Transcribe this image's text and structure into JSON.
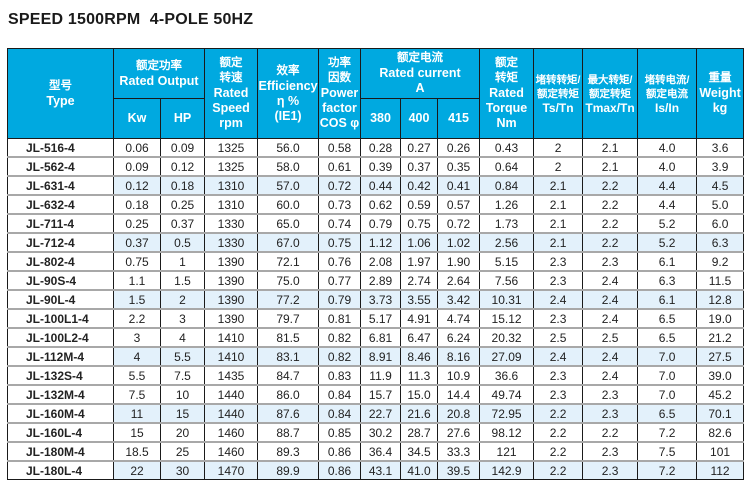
{
  "title": "SPEED 1500RPM  4-POLE 50HZ",
  "header": {
    "type_cn": "型号",
    "type_en": "Type",
    "output_cn": "额定功率",
    "output_en": "Rated  Output",
    "kw": "Kw",
    "hp": "HP",
    "speed_cn1": "额定",
    "speed_cn2": "转速",
    "speed_en1": "Rated",
    "speed_en2": "Speed",
    "speed_unit": "rpm",
    "eff_cn": "效率",
    "eff_en": "Efficiency",
    "eff_unit": "η %",
    "eff_class": "(IE1)",
    "pf_cn1": "功率",
    "pf_cn2": "因数",
    "pf_en1": "Power",
    "pf_en2": "factor",
    "pf_en3": "COS φ",
    "current_cn": "额定电流",
    "current_en": "Rated  current",
    "current_unit": "A",
    "v380": "380",
    "v400": "400",
    "v415": "415",
    "torque_cn1": "额定",
    "torque_cn2": "转矩",
    "torque_en1": "Rated",
    "torque_en2": "Torque",
    "torque_unit": "Nm",
    "ts_cn1": "堵转转矩/",
    "ts_cn2": "额定转矩",
    "ts_en": "Ts/Tn",
    "tmax_cn1": "最大转矩/",
    "tmax_cn2": "额定转矩",
    "tmax_en": "Tmax/Tn",
    "is_cn1": "堵转电流/",
    "is_cn2": "额定电流",
    "is_en": "Is/In",
    "weight_cn": "重量",
    "weight_en": "Weight",
    "weight_unit": "kg"
  },
  "highlight_color": "#e3f1fb",
  "header_color": "#00a9e0",
  "rows": [
    [
      "JL-516-4",
      "0.06",
      "0.09",
      "1325",
      "56.0",
      "0.58",
      "0.28",
      "0.27",
      "0.26",
      "0.43",
      "2",
      "2.1",
      "4.0",
      "3.6"
    ],
    [
      "JL-562-4",
      "0.09",
      "0.12",
      "1325",
      "58.0",
      "0.61",
      "0.39",
      "0.37",
      "0.35",
      "0.64",
      "2",
      "2.1",
      "4.0",
      "3.9"
    ],
    [
      "JL-631-4",
      "0.12",
      "0.18",
      "1310",
      "57.0",
      "0.72",
      "0.44",
      "0.42",
      "0.41",
      "0.84",
      "2.1",
      "2.2",
      "4.4",
      "4.5"
    ],
    [
      "JL-632-4",
      "0.18",
      "0.25",
      "1310",
      "60.0",
      "0.73",
      "0.62",
      "0.59",
      "0.57",
      "1.26",
      "2.1",
      "2.2",
      "4.4",
      "5.0"
    ],
    [
      "JL-711-4",
      "0.25",
      "0.37",
      "1330",
      "65.0",
      "0.74",
      "0.79",
      "0.75",
      "0.72",
      "1.73",
      "2.1",
      "2.2",
      "5.2",
      "6.0"
    ],
    [
      "JL-712-4",
      "0.37",
      "0.5",
      "1330",
      "67.0",
      "0.75",
      "1.12",
      "1.06",
      "1.02",
      "2.56",
      "2.1",
      "2.2",
      "5.2",
      "6.3"
    ],
    [
      "JL-802-4",
      "0.75",
      "1",
      "1390",
      "72.1",
      "0.76",
      "2.08",
      "1.97",
      "1.90",
      "5.15",
      "2.3",
      "2.3",
      "6.1",
      "9.2"
    ],
    [
      "JL-90S-4",
      "1.1",
      "1.5",
      "1390",
      "75.0",
      "0.77",
      "2.89",
      "2.74",
      "2.64",
      "7.56",
      "2.3",
      "2.4",
      "6.3",
      "11.5"
    ],
    [
      "JL-90L-4",
      "1.5",
      "2",
      "1390",
      "77.2",
      "0.79",
      "3.73",
      "3.55",
      "3.42",
      "10.31",
      "2.4",
      "2.4",
      "6.1",
      "12.8"
    ],
    [
      "JL-100L1-4",
      "2.2",
      "3",
      "1390",
      "79.7",
      "0.81",
      "5.17",
      "4.91",
      "4.74",
      "15.12",
      "2.3",
      "2.4",
      "6.5",
      "19.0"
    ],
    [
      "JL-100L2-4",
      "3",
      "4",
      "1410",
      "81.5",
      "0.82",
      "6.81",
      "6.47",
      "6.24",
      "20.32",
      "2.5",
      "2.5",
      "6.5",
      "21.2"
    ],
    [
      "JL-112M-4",
      "4",
      "5.5",
      "1410",
      "83.1",
      "0.82",
      "8.91",
      "8.46",
      "8.16",
      "27.09",
      "2.4",
      "2.4",
      "7.0",
      "27.5"
    ],
    [
      "JL-132S-4",
      "5.5",
      "7.5",
      "1435",
      "84.7",
      "0.83",
      "11.9",
      "11.3",
      "10.9",
      "36.6",
      "2.3",
      "2.4",
      "7.0",
      "39.0"
    ],
    [
      "JL-132M-4",
      "7.5",
      "10",
      "1440",
      "86.0",
      "0.84",
      "15.7",
      "15.0",
      "14.4",
      "49.74",
      "2.3",
      "2.3",
      "7.0",
      "45.2"
    ],
    [
      "JL-160M-4",
      "11",
      "15",
      "1440",
      "87.6",
      "0.84",
      "22.7",
      "21.6",
      "20.8",
      "72.95",
      "2.2",
      "2.3",
      "6.5",
      "70.1"
    ],
    [
      "JL-160L-4",
      "15",
      "20",
      "1460",
      "88.7",
      "0.85",
      "30.2",
      "28.7",
      "27.6",
      "98.12",
      "2.2",
      "2.2",
      "7.2",
      "82.6"
    ],
    [
      "JL-180M-4",
      "18.5",
      "25",
      "1460",
      "89.3",
      "0.86",
      "36.4",
      "34.5",
      "33.3",
      "121",
      "2.2",
      "2.3",
      "7.5",
      "101"
    ],
    [
      "JL-180L-4",
      "22",
      "30",
      "1470",
      "89.9",
      "0.86",
      "43.1",
      "41.0",
      "39.5",
      "142.9",
      "2.2",
      "2.3",
      "7.2",
      "112"
    ]
  ]
}
